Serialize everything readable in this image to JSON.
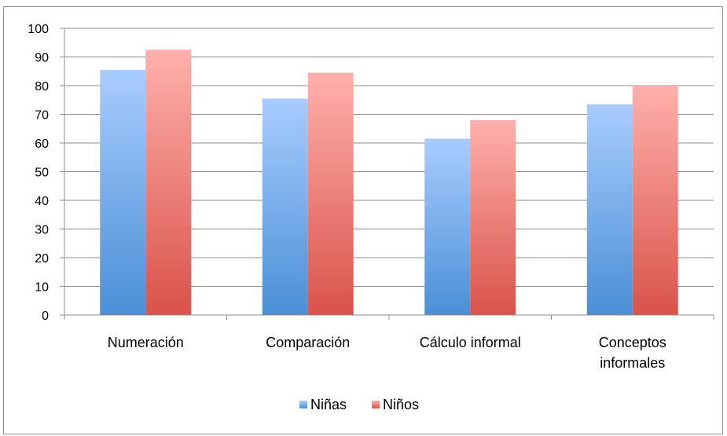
{
  "chart_data": {
    "type": "bar",
    "title": "",
    "xlabel": "",
    "ylabel": "",
    "categories": [
      [
        "Numeración"
      ],
      [
        "Comparación"
      ],
      [
        "Cálculo informal"
      ],
      [
        "Conceptos",
        "informales"
      ]
    ],
    "series": [
      {
        "name": "Niñas",
        "values": [
          85.5,
          75.5,
          61.5,
          73.5
        ]
      },
      {
        "name": "Niños",
        "values": [
          92.5,
          84.5,
          68,
          80
        ]
      }
    ],
    "ylim": [
      0,
      100
    ],
    "yticks": [
      0,
      10,
      20,
      30,
      40,
      50,
      60,
      70,
      80,
      90,
      100
    ],
    "grid": true,
    "legend_position": "bottom",
    "colors": {
      "series0_top": "#a9ccff",
      "series0_bottom": "#4a8fd6",
      "series1_top": "#ffb0ac",
      "series1_bottom": "#d9534a",
      "grid": "#8c8c8c",
      "axis": "#8c8c8c"
    }
  }
}
